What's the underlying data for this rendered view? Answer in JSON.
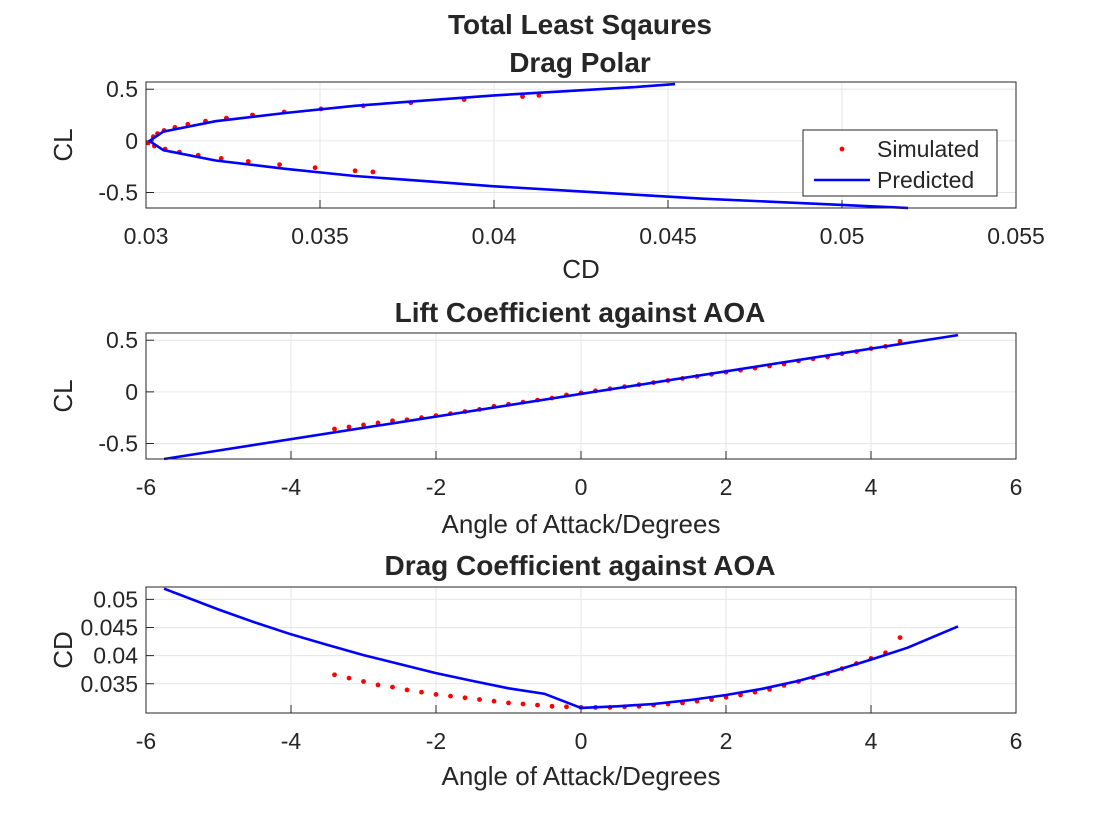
{
  "figure": {
    "colors": {
      "simulated": "#ff0000",
      "predicted": "#0000ff",
      "grid": "#e6e6e6",
      "axes": "#262626"
    }
  },
  "chart_data": [
    {
      "type": "scatter",
      "title": "Total Least Sqaures",
      "subtitle": "Drag Polar",
      "xlabel": "CD",
      "ylabel": "CL",
      "xlim": [
        0.03,
        0.055
      ],
      "ylim": [
        -0.65,
        0.57
      ],
      "xticks": [
        0.03,
        0.035,
        0.04,
        0.045,
        0.05,
        0.055
      ],
      "xtick_labels": [
        "0.03",
        "0.035",
        "0.04",
        "0.045",
        "0.05",
        "0.055"
      ],
      "yticks": [
        -0.5,
        0,
        0.5
      ],
      "ytick_labels": [
        "-0.5",
        "0",
        "0.5"
      ],
      "grid": true,
      "legend": {
        "position": "right",
        "entries": [
          "Simulated",
          "Predicted"
        ]
      },
      "series": [
        {
          "name": "Simulated",
          "kind": "points",
          "color": "#ff0000",
          "x": [
            0.03021,
            0.03033,
            0.03052,
            0.03083,
            0.0312,
            0.03171,
            0.03231,
            0.03306,
            0.03397,
            0.03503,
            0.03624,
            0.03761,
            0.03914,
            0.04082,
            0.04129,
            0.03006,
            0.03024,
            0.03055,
            0.03096,
            0.0315,
            0.03216,
            0.03294,
            0.03384,
            0.03486,
            0.03601,
            0.03652
          ],
          "y": [
            0.04,
            0.07,
            0.1,
            0.13,
            0.16,
            0.19,
            0.22,
            0.25,
            0.28,
            0.31,
            0.34,
            0.37,
            0.4,
            0.43,
            0.44,
            -0.02,
            -0.05,
            -0.08,
            -0.11,
            -0.14,
            -0.17,
            -0.2,
            -0.23,
            -0.26,
            -0.29,
            -0.3
          ]
        },
        {
          "name": "Predicted",
          "kind": "line",
          "color": "#0000ff",
          "x": [
            0.0519,
            0.05,
            0.048,
            0.046,
            0.044,
            0.042,
            0.04,
            0.038,
            0.036,
            0.034,
            0.032,
            0.0305,
            0.0301,
            0.0305,
            0.032,
            0.034,
            0.036,
            0.038,
            0.04,
            0.042,
            0.044,
            0.0452
          ],
          "y": [
            -0.65,
            -0.62,
            -0.59,
            -0.56,
            -0.52,
            -0.48,
            -0.44,
            -0.39,
            -0.34,
            -0.27,
            -0.19,
            -0.09,
            0.0,
            0.09,
            0.19,
            0.27,
            0.34,
            0.39,
            0.44,
            0.48,
            0.52,
            0.55
          ]
        }
      ]
    },
    {
      "type": "scatter",
      "title": "Lift Coefficient against AOA",
      "xlabel": "Angle of Attack/Degrees",
      "ylabel": "CL",
      "xlim": [
        -6,
        6
      ],
      "ylim": [
        -0.65,
        0.57
      ],
      "xticks": [
        -6,
        -4,
        -2,
        0,
        2,
        4,
        6
      ],
      "xtick_labels": [
        "-6",
        "-4",
        "-2",
        "0",
        "2",
        "4",
        "6"
      ],
      "yticks": [
        -0.5,
        0,
        0.5
      ],
      "ytick_labels": [
        "-0.5",
        "0",
        "0.5"
      ],
      "grid": true,
      "series": [
        {
          "name": "Simulated",
          "kind": "points",
          "color": "#ff0000",
          "x": [
            -3.4,
            -3.2,
            -3.0,
            -2.8,
            -2.6,
            -2.4,
            -2.2,
            -2.0,
            -1.8,
            -1.6,
            -1.4,
            -1.2,
            -1.0,
            -0.8,
            -0.6,
            -0.4,
            -0.2,
            0.0,
            0.2,
            0.4,
            0.6,
            0.8,
            1.0,
            1.2,
            1.4,
            1.6,
            1.8,
            2.0,
            2.2,
            2.4,
            2.6,
            2.8,
            3.0,
            3.2,
            3.4,
            3.6,
            3.8,
            4.0,
            4.2,
            4.4
          ],
          "y": [
            -0.36,
            -0.34,
            -0.32,
            -0.3,
            -0.28,
            -0.27,
            -0.25,
            -0.23,
            -0.21,
            -0.19,
            -0.17,
            -0.14,
            -0.12,
            -0.1,
            -0.08,
            -0.06,
            -0.03,
            -0.01,
            0.01,
            0.03,
            0.05,
            0.07,
            0.09,
            0.11,
            0.13,
            0.15,
            0.17,
            0.19,
            0.21,
            0.23,
            0.25,
            0.27,
            0.3,
            0.32,
            0.34,
            0.37,
            0.39,
            0.42,
            0.44,
            0.49
          ]
        },
        {
          "name": "Predicted",
          "kind": "line",
          "color": "#0000ff",
          "x": [
            -5.75,
            5.2
          ],
          "y": [
            -0.65,
            0.55
          ]
        }
      ]
    },
    {
      "type": "scatter",
      "title": "Drag Coefficient against AOA",
      "xlabel": "Angle of Attack/Degrees",
      "ylabel": "CD",
      "xlim": [
        -6,
        6
      ],
      "ylim": [
        0.0298,
        0.0522
      ],
      "xticks": [
        -6,
        -4,
        -2,
        0,
        2,
        4,
        6
      ],
      "xtick_labels": [
        "-6",
        "-4",
        "-2",
        "0",
        "2",
        "4",
        "6"
      ],
      "yticks": [
        0.035,
        0.04,
        0.045,
        0.05
      ],
      "ytick_labels": [
        "0.035",
        "0.04",
        "0.045",
        "0.05"
      ],
      "grid": true,
      "series": [
        {
          "name": "Simulated",
          "kind": "points",
          "color": "#ff0000",
          "x": [
            -3.4,
            -3.2,
            -3.0,
            -2.8,
            -2.6,
            -2.4,
            -2.2,
            -2.0,
            -1.8,
            -1.6,
            -1.4,
            -1.2,
            -1.0,
            -0.8,
            -0.6,
            -0.4,
            -0.2,
            0.0,
            0.2,
            0.4,
            0.6,
            0.8,
            1.0,
            1.2,
            1.4,
            1.6,
            1.8,
            2.0,
            2.2,
            2.4,
            2.6,
            2.8,
            3.0,
            3.2,
            3.4,
            3.6,
            3.8,
            4.0,
            4.2,
            4.4
          ],
          "y": [
            0.0366,
            0.036,
            0.0354,
            0.0348,
            0.0344,
            0.0339,
            0.0335,
            0.0331,
            0.0328,
            0.0325,
            0.0322,
            0.0319,
            0.0316,
            0.0314,
            0.0312,
            0.031,
            0.0309,
            0.0308,
            0.0308,
            0.0308,
            0.0309,
            0.031,
            0.0312,
            0.0314,
            0.0316,
            0.0319,
            0.0322,
            0.0326,
            0.033,
            0.0335,
            0.034,
            0.0347,
            0.0354,
            0.0361,
            0.0368,
            0.0377,
            0.0386,
            0.0395,
            0.0405,
            0.0432
          ]
        },
        {
          "name": "Predicted",
          "kind": "line",
          "color": "#0000ff",
          "x": [
            -5.75,
            -5.0,
            -4.5,
            -4.0,
            -3.5,
            -3.0,
            -2.5,
            -2.0,
            -1.5,
            -1.0,
            -0.5,
            0.0,
            0.5,
            1.0,
            1.5,
            2.0,
            2.5,
            3.0,
            3.5,
            4.0,
            4.5,
            5.2
          ],
          "y": [
            0.0519,
            0.0482,
            0.0459,
            0.0438,
            0.0419,
            0.0401,
            0.0385,
            0.0369,
            0.0355,
            0.0342,
            0.0332,
            0.0307,
            0.031,
            0.0314,
            0.0321,
            0.033,
            0.0341,
            0.0355,
            0.0373,
            0.0393,
            0.0414,
            0.0452
          ]
        }
      ]
    }
  ]
}
